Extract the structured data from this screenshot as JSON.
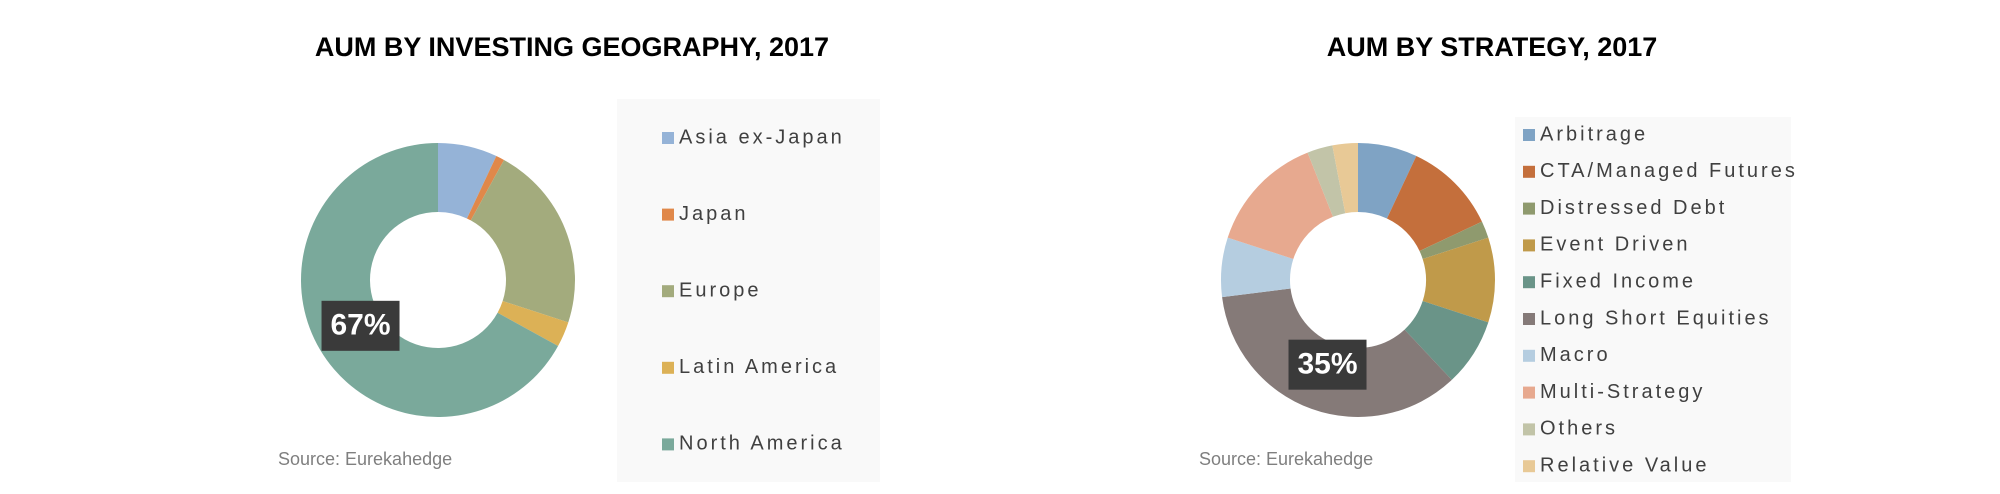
{
  "chart_data": [
    {
      "type": "donut",
      "title": "AUM BY INVESTING GEOGRAPHY, 2017",
      "categories": [
        "Asia ex-Japan",
        "Japan",
        "Europe",
        "Latin America",
        "North America"
      ],
      "values": [
        7,
        1,
        22,
        3,
        67
      ],
      "value_labels": [
        null,
        null,
        null,
        null,
        "67%"
      ],
      "colors": [
        "#95b3d7",
        "#e0884a",
        "#a3ab7d",
        "#dcb156",
        "#7aa99b"
      ],
      "source": "Source: Eurekahedge"
    },
    {
      "type": "donut",
      "title": "AUM BY STRATEGY, 2017",
      "categories": [
        "Arbitrage",
        "CTA/Managed Futures",
        "Distressed Debt",
        "Event Driven",
        "Fixed Income",
        "Long Short Equities",
        "Macro",
        "Multi-Strategy",
        "Others",
        "Relative Value"
      ],
      "values": [
        7,
        11,
        2,
        10,
        8,
        35,
        7,
        14,
        3,
        3
      ],
      "value_labels": [
        null,
        null,
        null,
        null,
        null,
        "35%",
        null,
        null,
        null,
        null
      ],
      "colors": [
        "#7fa3c4",
        "#c46f3c",
        "#8f9a6e",
        "#c09a4a",
        "#6a9488",
        "#857a78",
        "#b5cde0",
        "#e7a98f",
        "#c2c4a8",
        "#e8c996"
      ],
      "source": "Source: Eurekahedge"
    }
  ]
}
